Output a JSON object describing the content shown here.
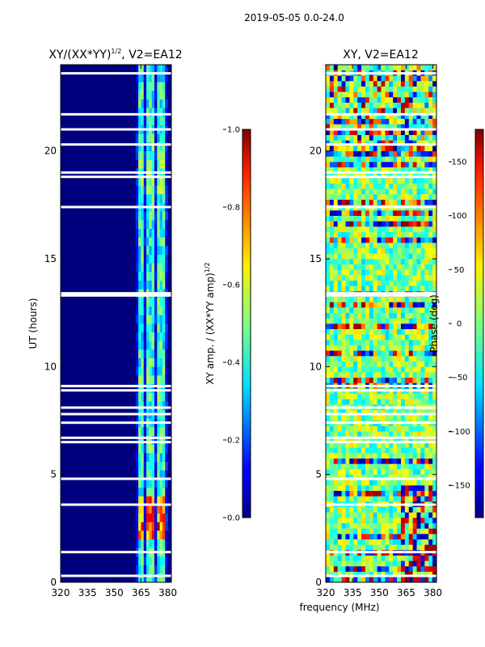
{
  "figure": {
    "suptitle": "2019-05-05 0.0-24.0",
    "shared_xlabel": "frequency (MHz)"
  },
  "chart_data": [
    {
      "type": "heatmap",
      "title_main": "XY/(XX*YY)",
      "title_exp": "1/2",
      "title_suffix": ", V2=EA12",
      "ylabel": "UT (hours)",
      "xlim": [
        320,
        382
      ],
      "ylim": [
        0,
        24
      ],
      "x_ticks": [
        320,
        335,
        350,
        365,
        380
      ],
      "y_ticks": [
        0,
        5,
        10,
        15,
        20
      ],
      "colormap": "jet",
      "colorbar": {
        "label_main": "XY amp. / (XX*YY amp)",
        "label_exp": "1/2",
        "range": [
          0.0,
          1.0
        ],
        "ticks": [
          "0.0",
          "0.2",
          "0.4",
          "0.6",
          "0.8",
          "1.0"
        ]
      },
      "description": "amplitude ratio; near 0 below ~362 MHz, bright channels 362-380 MHz, strongest 2-4 UT",
      "active_band_mhz": [
        362,
        380
      ],
      "gap_rows_hours": [
        23.6,
        21.7,
        21.0,
        20.3,
        19.0,
        18.8,
        17.4,
        13.4,
        13.3,
        9.1,
        8.9,
        8.1,
        7.8,
        7.4,
        6.7,
        6.5,
        4.8,
        3.6,
        1.4,
        0.3
      ]
    },
    {
      "type": "heatmap",
      "title": "XY, V2=EA12",
      "xlim": [
        320,
        382
      ],
      "ylim": [
        0,
        24
      ],
      "x_ticks": [
        320,
        335,
        350,
        365,
        380
      ],
      "y_ticks": [
        0,
        5,
        10,
        15,
        20
      ],
      "colormap": "jet",
      "colorbar": {
        "label": "Phase (deg)",
        "range": [
          -180,
          180
        ],
        "ticks": [
          "−150",
          "−100",
          "−50",
          "0",
          "50",
          "100",
          "150"
        ]
      },
      "description": "phase map; mostly near 0 deg with noisy wrapping stripes",
      "gap_rows_hours": [
        23.6,
        21.7,
        21.0,
        20.3,
        19.0,
        18.8,
        17.4,
        13.4,
        13.3,
        9.1,
        8.9,
        8.1,
        7.8,
        7.4,
        6.7,
        6.5,
        4.8,
        3.6,
        1.4,
        0.3
      ]
    }
  ]
}
